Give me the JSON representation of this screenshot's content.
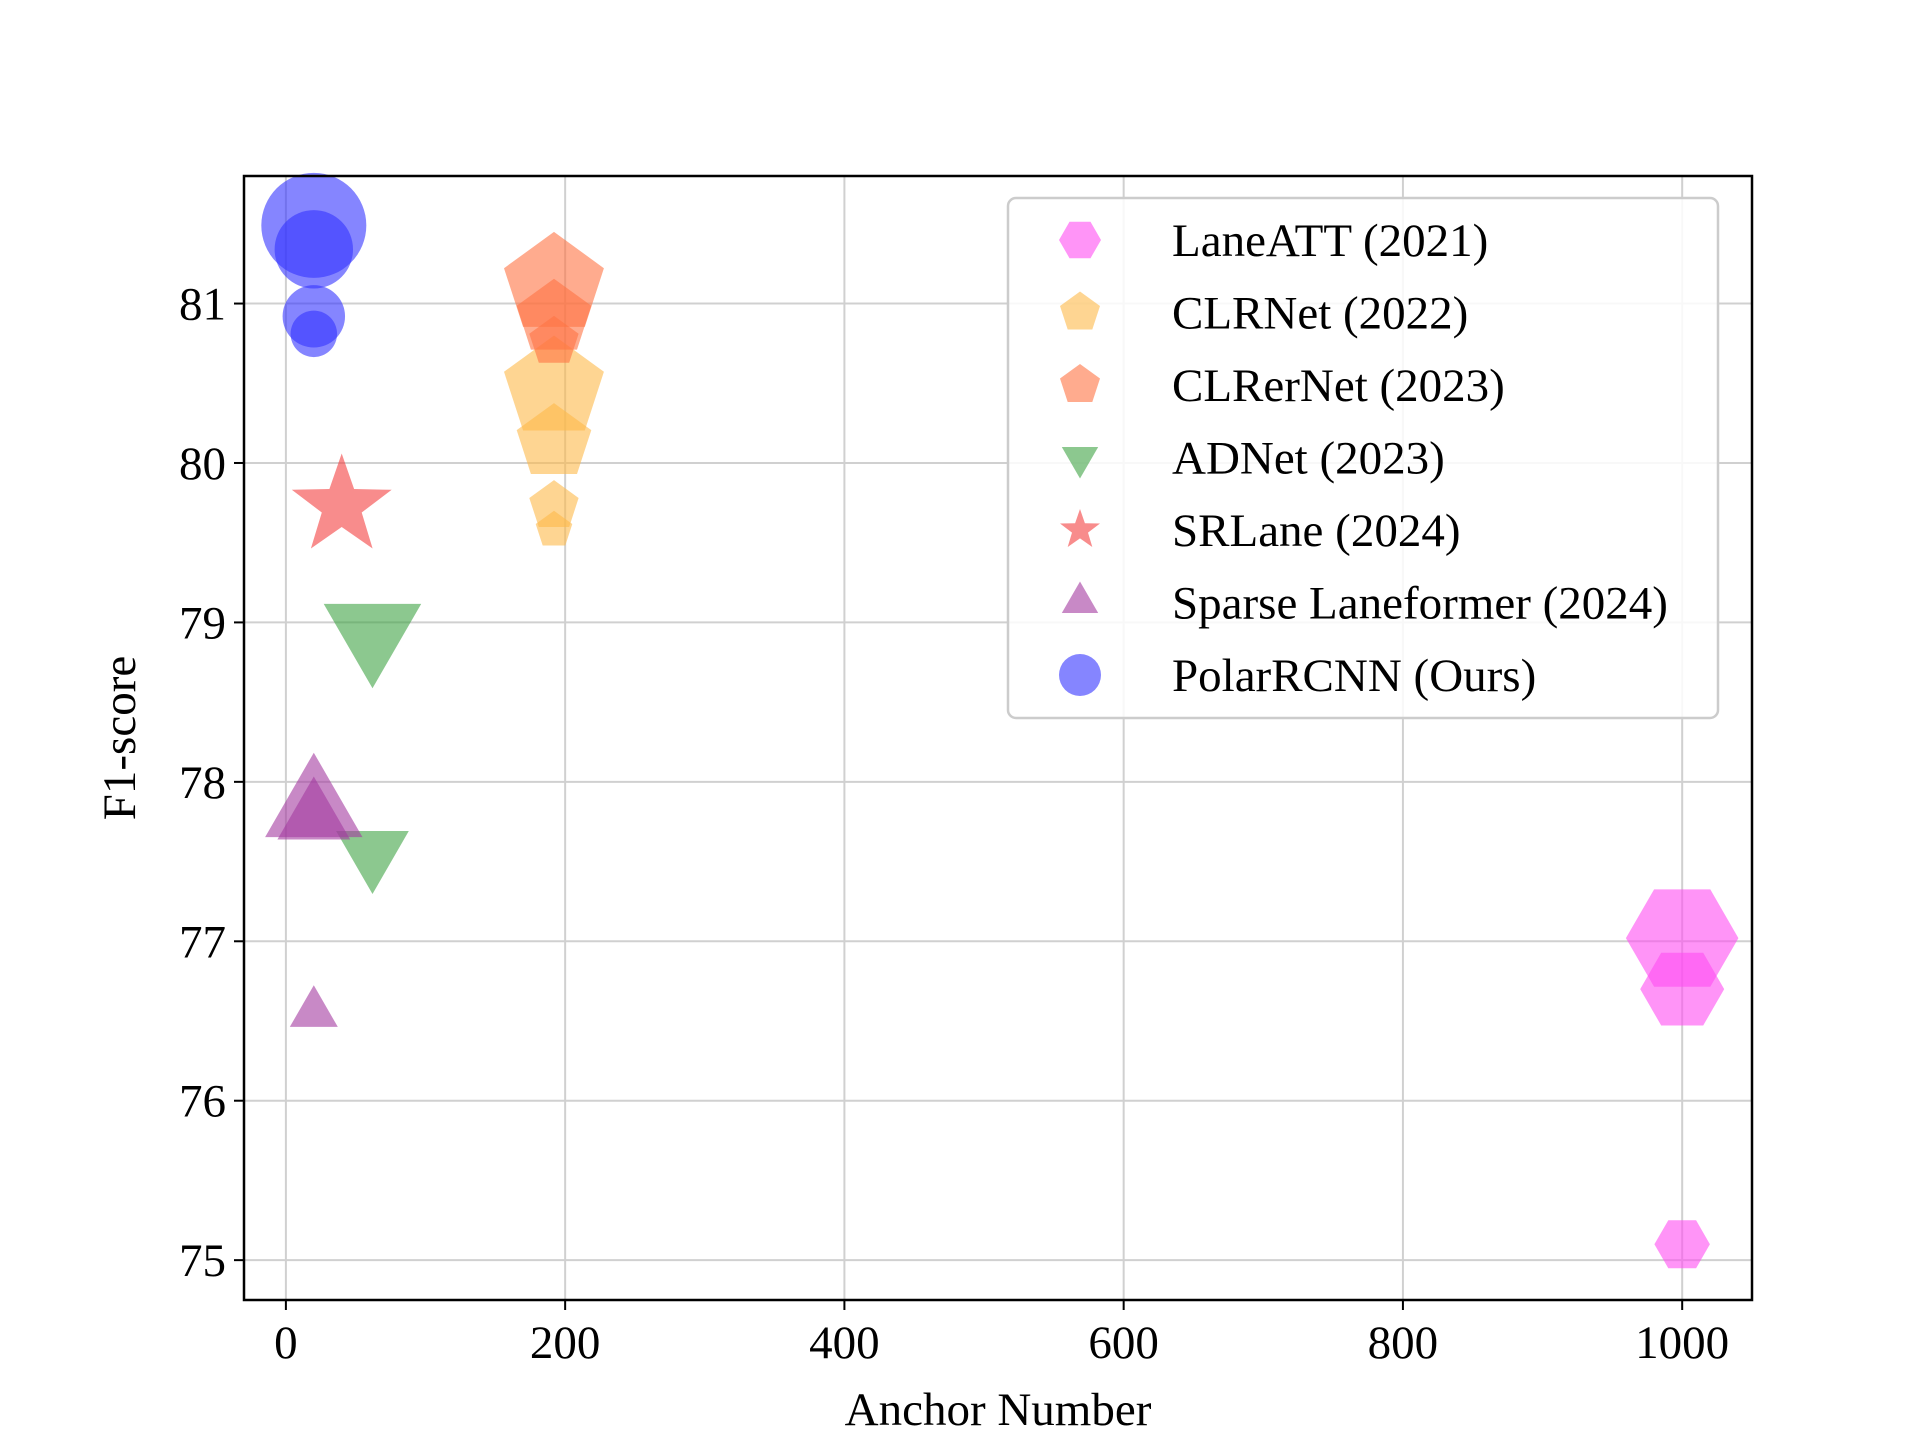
{
  "chart_data": {
    "type": "scatter",
    "xlabel": "Anchor Number",
    "ylabel": "F1-score",
    "xlim": [
      -30,
      1050
    ],
    "ylim": [
      74.75,
      81.8
    ],
    "xticks": [
      0,
      200,
      400,
      600,
      800,
      1000
    ],
    "yticks": [
      75,
      76,
      77,
      78,
      79,
      80,
      81
    ],
    "grid": true,
    "legend_position": "top-right",
    "series": [
      {
        "name": "LaneATT (2021)",
        "marker": "hexagon",
        "color": "#ff4df2",
        "points": [
          {
            "x": 1000,
            "y": 77.02,
            "size": 3
          },
          {
            "x": 1000,
            "y": 76.7,
            "size": 2
          },
          {
            "x": 1000,
            "y": 75.1,
            "size": 1
          }
        ]
      },
      {
        "name": "CLRNet (2022)",
        "marker": "pentagon",
        "color": "#fdb94a",
        "points": [
          {
            "x": 192,
            "y": 80.47,
            "size": 3
          },
          {
            "x": 192,
            "y": 80.13,
            "size": 2
          },
          {
            "x": 192,
            "y": 79.73,
            "size": 1
          },
          {
            "x": 192,
            "y": 79.58,
            "size": 0.5
          }
        ]
      },
      {
        "name": "CLRerNet (2023)",
        "marker": "pentagon",
        "color": "#ff7342",
        "points": [
          {
            "x": 192,
            "y": 81.12,
            "size": 3
          },
          {
            "x": 192,
            "y": 80.91,
            "size": 2
          },
          {
            "x": 192,
            "y": 80.76,
            "size": 1
          }
        ]
      },
      {
        "name": "ADNet (2023)",
        "marker": "triangle-down",
        "color": "#3fa344",
        "points": [
          {
            "x": 62,
            "y": 78.94,
            "size": 3
          },
          {
            "x": 62,
            "y": 77.56,
            "size": 2
          }
        ]
      },
      {
        "name": "SRLane (2024)",
        "marker": "star",
        "color": "#f43f3f",
        "points": [
          {
            "x": 40,
            "y": 79.73,
            "size": 3
          }
        ]
      },
      {
        "name": "Sparse Laneformer (2024)",
        "marker": "triangle-up",
        "color": "#a33aa0",
        "points": [
          {
            "x": 20,
            "y": 77.83,
            "size": 3
          },
          {
            "x": 20,
            "y": 77.77,
            "size": 2
          },
          {
            "x": 20,
            "y": 76.55,
            "size": 1
          }
        ]
      },
      {
        "name": "PolarRCNN (Ours)",
        "marker": "circle",
        "color": "#3434ff",
        "points": [
          {
            "x": 20,
            "y": 81.49,
            "size": 3
          },
          {
            "x": 20,
            "y": 81.34,
            "size": 2
          },
          {
            "x": 20,
            "y": 80.92,
            "size": 1.4
          },
          {
            "x": 20,
            "y": 80.81,
            "size": 0.8
          }
        ]
      }
    ]
  }
}
